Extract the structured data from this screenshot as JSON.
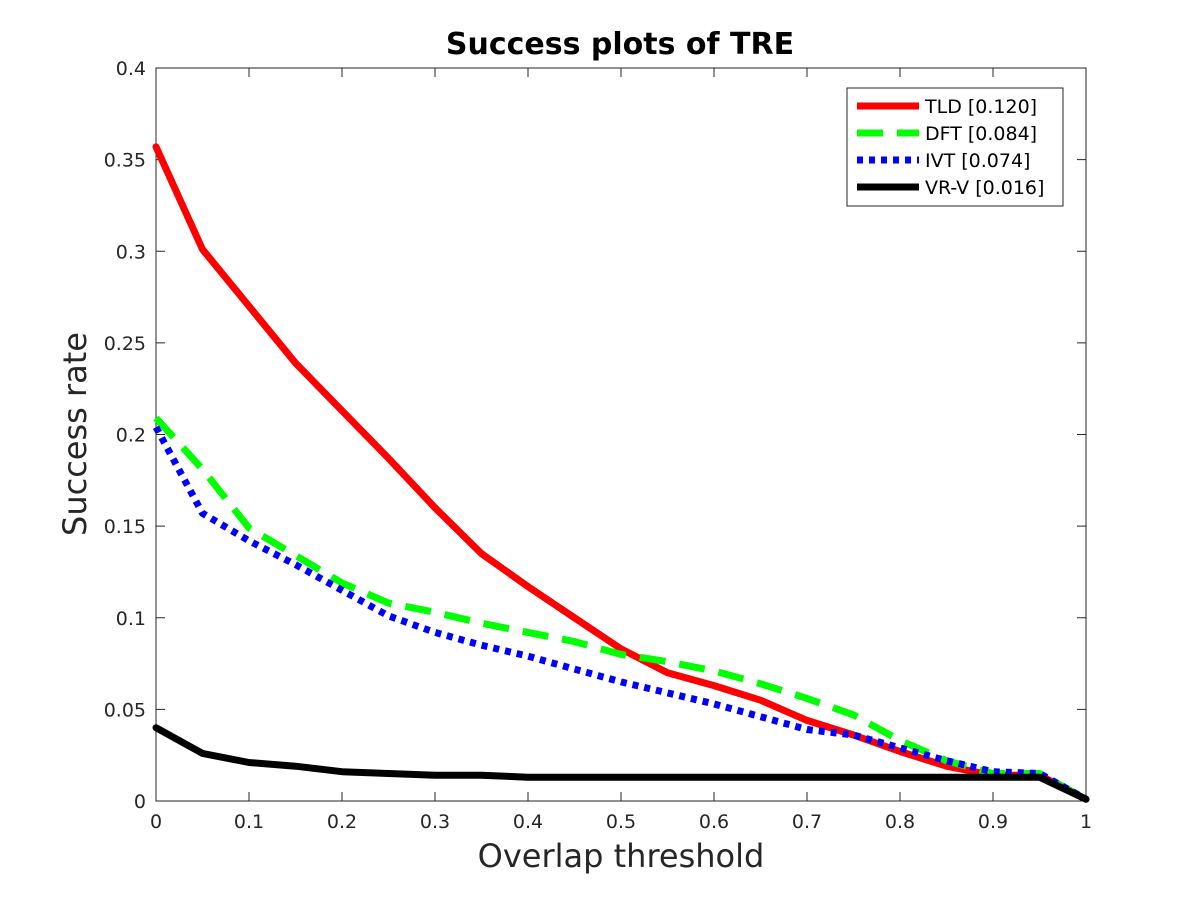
{
  "chart_data": {
    "type": "line",
    "title": "Success plots of TRE",
    "xlabel": "Overlap threshold",
    "ylabel": "Success rate",
    "xlim": [
      0,
      1
    ],
    "ylim": [
      0,
      0.4
    ],
    "xticks": [
      0,
      0.1,
      0.2,
      0.3,
      0.4,
      0.5,
      0.6,
      0.7,
      0.8,
      0.9,
      1
    ],
    "xtick_labels": [
      "0",
      "0.1",
      "0.2",
      "0.3",
      "0.4",
      "0.5",
      "0.6",
      "0.7",
      "0.8",
      "0.9",
      "1"
    ],
    "yticks": [
      0,
      0.05,
      0.1,
      0.15,
      0.2,
      0.25,
      0.3,
      0.35,
      0.4
    ],
    "ytick_labels": [
      "0",
      "0.05",
      "0.1",
      "0.15",
      "0.2",
      "0.25",
      "0.3",
      "0.35",
      "0.4"
    ],
    "grid": false,
    "legend_position": "top-right",
    "x": [
      0,
      0.05,
      0.1,
      0.15,
      0.2,
      0.25,
      0.3,
      0.35,
      0.4,
      0.45,
      0.5,
      0.55,
      0.6,
      0.65,
      0.7,
      0.75,
      0.8,
      0.85,
      0.9,
      0.95,
      1
    ],
    "series": [
      {
        "name": "TLD [0.120]",
        "color": "#ff0000",
        "style": "solid",
        "values": [
          0.357,
          0.301,
          0.27,
          0.239,
          0.213,
          0.187,
          0.16,
          0.135,
          0.117,
          0.1,
          0.083,
          0.07,
          0.063,
          0.055,
          0.044,
          0.036,
          0.027,
          0.019,
          0.014,
          0.014,
          0.001
        ]
      },
      {
        "name": "DFT [0.084]",
        "color": "#00ff00",
        "style": "dashed",
        "values": [
          0.209,
          0.181,
          0.149,
          0.134,
          0.119,
          0.108,
          0.103,
          0.097,
          0.092,
          0.087,
          0.08,
          0.076,
          0.071,
          0.064,
          0.056,
          0.047,
          0.033,
          0.022,
          0.015,
          0.015,
          0.001
        ]
      },
      {
        "name": "IVT [0.074]",
        "color": "#0000ff",
        "style": "dotted",
        "values": [
          0.204,
          0.157,
          0.142,
          0.129,
          0.115,
          0.101,
          0.092,
          0.085,
          0.079,
          0.072,
          0.065,
          0.059,
          0.053,
          0.046,
          0.039,
          0.036,
          0.029,
          0.022,
          0.016,
          0.015,
          0.001
        ]
      },
      {
        "name": "VR-V [0.016]",
        "color": "#000000",
        "style": "solid",
        "values": [
          0.04,
          0.026,
          0.021,
          0.019,
          0.016,
          0.015,
          0.014,
          0.014,
          0.013,
          0.013,
          0.013,
          0.013,
          0.013,
          0.013,
          0.013,
          0.013,
          0.013,
          0.013,
          0.013,
          0.013,
          0.001
        ]
      }
    ]
  }
}
